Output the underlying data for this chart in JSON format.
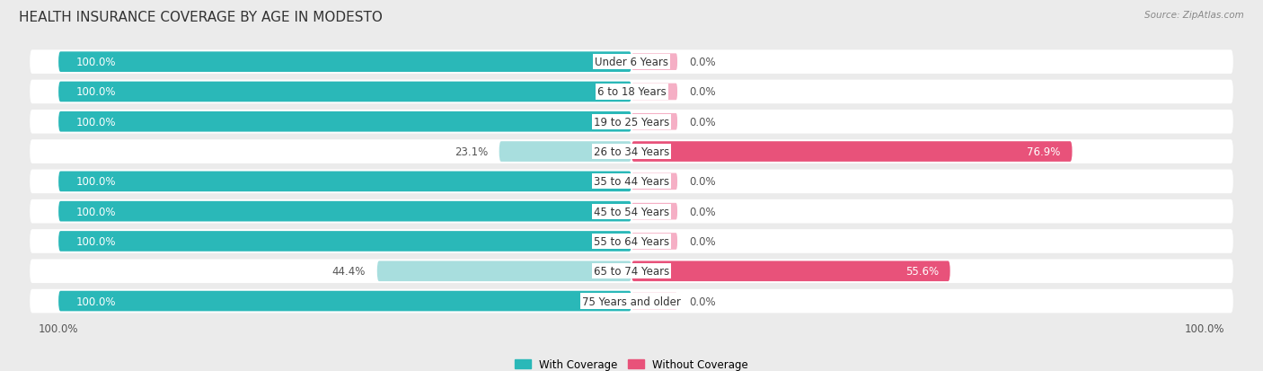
{
  "title": "HEALTH INSURANCE COVERAGE BY AGE IN MODESTO",
  "source": "Source: ZipAtlas.com",
  "categories": [
    "Under 6 Years",
    "6 to 18 Years",
    "19 to 25 Years",
    "26 to 34 Years",
    "35 to 44 Years",
    "45 to 54 Years",
    "55 to 64 Years",
    "65 to 74 Years",
    "75 Years and older"
  ],
  "with_coverage": [
    100.0,
    100.0,
    100.0,
    23.1,
    100.0,
    100.0,
    100.0,
    44.4,
    100.0
  ],
  "without_coverage": [
    0.0,
    0.0,
    0.0,
    76.9,
    0.0,
    0.0,
    0.0,
    55.6,
    0.0
  ],
  "color_with_full": "#2ab8b8",
  "color_with_partial": "#a8dede",
  "color_without_large": "#e8527a",
  "color_without_small": "#f5afc5",
  "background_color": "#ebebeb",
  "bar_bg_color": "#f5f5f5",
  "title_fontsize": 11,
  "label_fontsize": 8.5,
  "tick_fontsize": 8.5
}
